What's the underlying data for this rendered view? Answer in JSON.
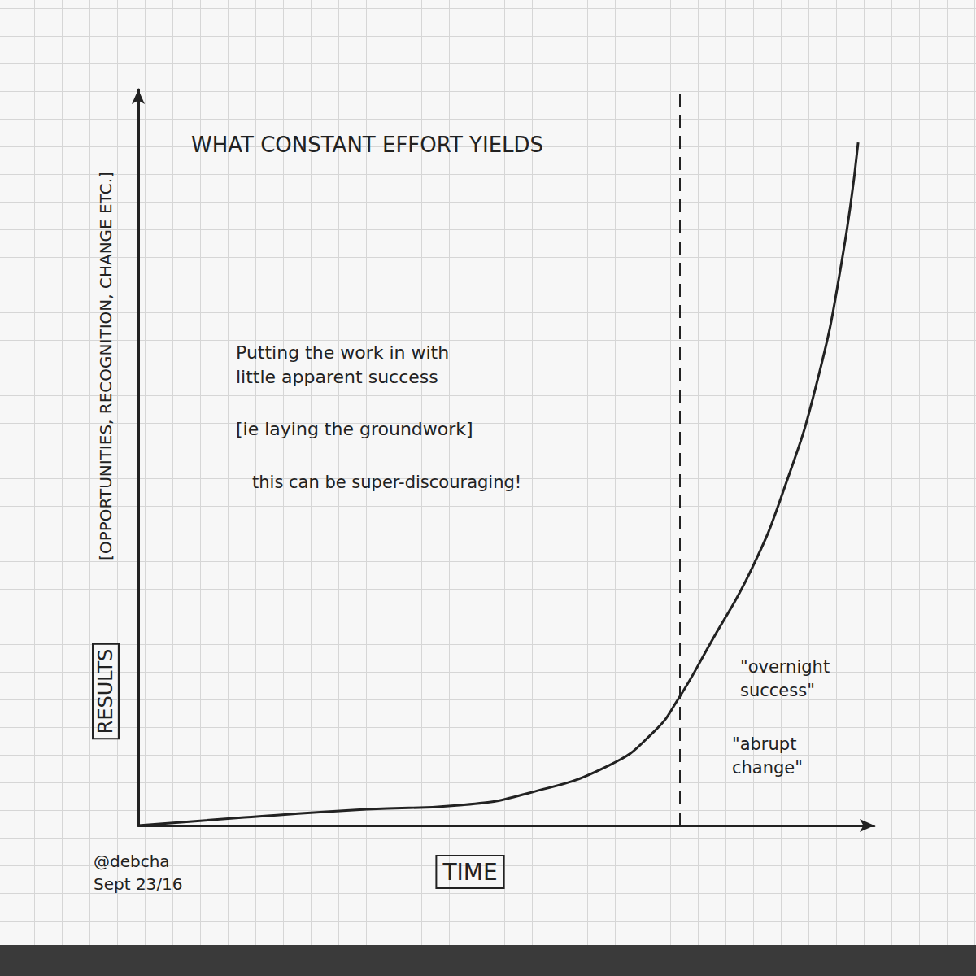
{
  "chart_data": {
    "type": "line",
    "title": "WHAT CONSTANT EFFORT YIELDS",
    "xlabel": "TIME",
    "ylabel": "RESULTS",
    "ylabel_detail": "[OPPORTUNITIES, RECOGNITION, CHANGE ETC.]",
    "x": [
      0,
      14.4,
      31,
      44,
      53,
      64,
      70,
      73.3,
      77.8,
      83.3,
      87.8,
      92.2,
      95.6,
      97.8
    ],
    "values": [
      0,
      1.1,
      2.2,
      2.8,
      4.4,
      8.2,
      12.7,
      17.1,
      24.9,
      34.8,
      45.9,
      60.2,
      76.8,
      92.8
    ],
    "color": "#222222",
    "xlim": [
      0,
      100
    ],
    "ylim": [
      0,
      100
    ],
    "xticks": [],
    "yticks": [],
    "tick_labels": false,
    "threshold_x": 73.6,
    "annotations": [
      "Putting the work in with\nlittle apparent success",
      "[ie laying the groundwork]",
      "this can be super-discouraging!",
      "\"overnight\nsuccess\"",
      "\"abrupt\nchange\"",
      "@debcha\nSept 23/16"
    ]
  }
}
